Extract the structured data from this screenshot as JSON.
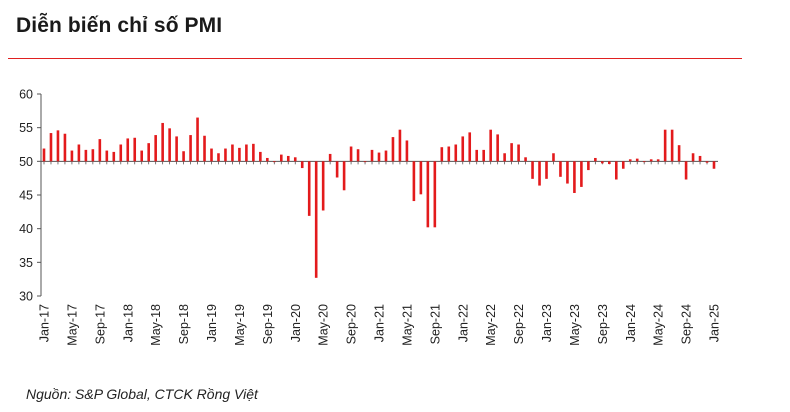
{
  "header": {
    "title": "Diễn biến chỉ số PMI"
  },
  "footer": {
    "source": "Nguồn: S&P Global, CTCK Rồng Việt"
  },
  "colors": {
    "bar": "#e31a1c",
    "axis": "#555555",
    "rule": "#e02020"
  },
  "chart_data": {
    "type": "bar",
    "title": "Diễn biến chỉ số PMI",
    "xlabel": "",
    "ylabel": "",
    "baseline": 50,
    "ylim": [
      30,
      60
    ],
    "yticks": [
      30,
      35,
      40,
      45,
      50,
      55,
      60
    ],
    "xtick_labels": [
      "Jan-17",
      "May-17",
      "Sep-17",
      "Jan-18",
      "May-18",
      "Sep-18",
      "Jan-19",
      "May-19",
      "Sep-19",
      "Jan-20",
      "May-20",
      "Sep-20",
      "Jan-21",
      "May-21",
      "Sep-21",
      "Jan-22",
      "May-22",
      "Sep-22",
      "Jan-23",
      "May-23",
      "Sep-23",
      "Jan-24",
      "May-24",
      "Sep-24",
      "Jan-25"
    ],
    "categories": [
      "Jan-17",
      "Feb-17",
      "Mar-17",
      "Apr-17",
      "May-17",
      "Jun-17",
      "Jul-17",
      "Aug-17",
      "Sep-17",
      "Oct-17",
      "Nov-17",
      "Dec-17",
      "Jan-18",
      "Feb-18",
      "Mar-18",
      "Apr-18",
      "May-18",
      "Jun-18",
      "Jul-18",
      "Aug-18",
      "Sep-18",
      "Oct-18",
      "Nov-18",
      "Dec-18",
      "Jan-19",
      "Feb-19",
      "Mar-19",
      "Apr-19",
      "May-19",
      "Jun-19",
      "Jul-19",
      "Aug-19",
      "Sep-19",
      "Oct-19",
      "Nov-19",
      "Dec-19",
      "Jan-20",
      "Feb-20",
      "Mar-20",
      "Apr-20",
      "May-20",
      "Jun-20",
      "Jul-20",
      "Aug-20",
      "Sep-20",
      "Oct-20",
      "Nov-20",
      "Dec-20",
      "Jan-21",
      "Feb-21",
      "Mar-21",
      "Apr-21",
      "May-21",
      "Jun-21",
      "Jul-21",
      "Aug-21",
      "Sep-21",
      "Oct-21",
      "Nov-21",
      "Dec-21",
      "Jan-22",
      "Feb-22",
      "Mar-22",
      "Apr-22",
      "May-22",
      "Jun-22",
      "Jul-22",
      "Aug-22",
      "Sep-22",
      "Oct-22",
      "Nov-22",
      "Dec-22",
      "Jan-23",
      "Feb-23",
      "Mar-23",
      "Apr-23",
      "May-23",
      "Jun-23",
      "Jul-23",
      "Aug-23",
      "Sep-23",
      "Oct-23",
      "Nov-23",
      "Dec-23",
      "Jan-24",
      "Feb-24",
      "Mar-24",
      "Apr-24",
      "May-24",
      "Jun-24",
      "Jul-24",
      "Aug-24",
      "Sep-24",
      "Oct-24",
      "Nov-24",
      "Dec-24",
      "Jan-25"
    ],
    "values": [
      51.9,
      54.2,
      54.6,
      54.1,
      51.6,
      52.5,
      51.7,
      51.8,
      53.3,
      51.6,
      51.4,
      52.5,
      53.4,
      53.5,
      51.6,
      52.7,
      53.9,
      55.7,
      54.9,
      53.7,
      51.5,
      53.9,
      56.5,
      53.8,
      51.9,
      51.2,
      51.9,
      52.5,
      52.0,
      52.5,
      52.6,
      51.4,
      50.5,
      50.0,
      51.0,
      50.8,
      50.6,
      49.0,
      41.9,
      32.7,
      42.7,
      51.1,
      47.6,
      45.7,
      52.2,
      51.8,
      49.9,
      51.7,
      51.3,
      51.6,
      53.6,
      54.7,
      53.1,
      44.1,
      45.1,
      40.2,
      40.2,
      52.1,
      52.2,
      52.5,
      53.7,
      54.3,
      51.7,
      51.7,
      54.7,
      54.0,
      51.2,
      52.7,
      52.5,
      50.6,
      47.4,
      46.4,
      47.4,
      51.2,
      47.7,
      46.7,
      45.3,
      46.2,
      48.7,
      50.5,
      49.7,
      49.6,
      47.3,
      48.9,
      50.3,
      50.4,
      49.9,
      50.3,
      50.3,
      54.7,
      54.7,
      52.4,
      47.3,
      51.2,
      50.8,
      49.8,
      48.9
    ]
  }
}
